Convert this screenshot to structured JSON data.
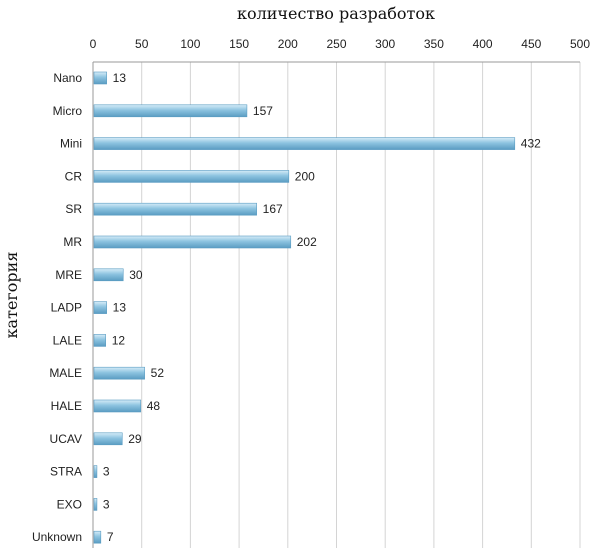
{
  "chart_data": {
    "type": "bar",
    "orientation": "horizontal",
    "title": "",
    "xlabel": "количество разработок",
    "ylabel": "категория",
    "categories": [
      "Nano",
      "Micro",
      "Mini",
      "CR",
      "SR",
      "MR",
      "MRE",
      "LADP",
      "LALE",
      "MALE",
      "HALE",
      "UCAV",
      "STRA",
      "EXO",
      "Unknown"
    ],
    "values": [
      13,
      157,
      432,
      200,
      167,
      202,
      30,
      13,
      12,
      52,
      48,
      29,
      3,
      3,
      7
    ],
    "xlim": [
      0,
      500
    ],
    "xticks": [
      0,
      50,
      100,
      150,
      200,
      250,
      300,
      350,
      400,
      450,
      500
    ],
    "x_axis_position": "top",
    "grid": true,
    "legend": "none",
    "bar_color": "#8cc3e0",
    "bar_highlight_color": "#d6ecf8",
    "bar_edge_color": "#5a9cc2"
  }
}
